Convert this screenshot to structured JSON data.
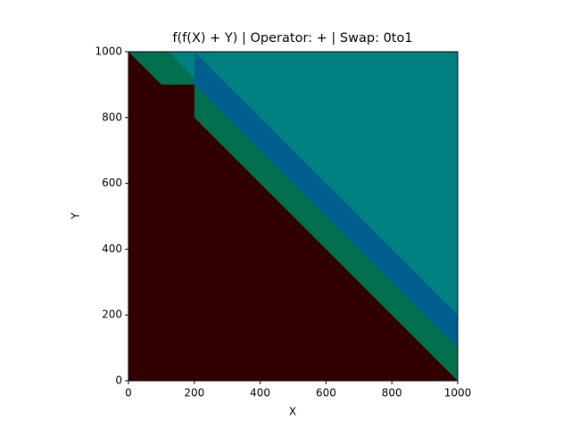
{
  "chart_data": {
    "type": "image",
    "title": "f(f(X) + Y) | Operator: + | Swap: 0to1",
    "xlabel": "X",
    "ylabel": "Y",
    "xlim": [
      0,
      1000
    ],
    "ylim": [
      0,
      1000
    ],
    "xticks": [
      0,
      200,
      400,
      600,
      800,
      1000
    ],
    "yticks": [
      0,
      200,
      400,
      600,
      800,
      1000
    ],
    "background": "#008080",
    "regions": [
      {
        "color": "#005f8f",
        "x": [
          200,
          1000,
          1000,
          200
        ],
        "y": [
          1000,
          200,
          100,
          900
        ]
      },
      {
        "color": "#00704f",
        "x": [
          0,
          120,
          200,
          200,
          1000,
          1000
        ],
        "y": [
          1000,
          1000,
          920,
          900,
          100,
          0
        ]
      },
      {
        "color": "#330000",
        "x": [
          0,
          0,
          100,
          200,
          200,
          1000
        ],
        "y": [
          0,
          1000,
          900,
          900,
          800,
          0
        ]
      }
    ]
  }
}
